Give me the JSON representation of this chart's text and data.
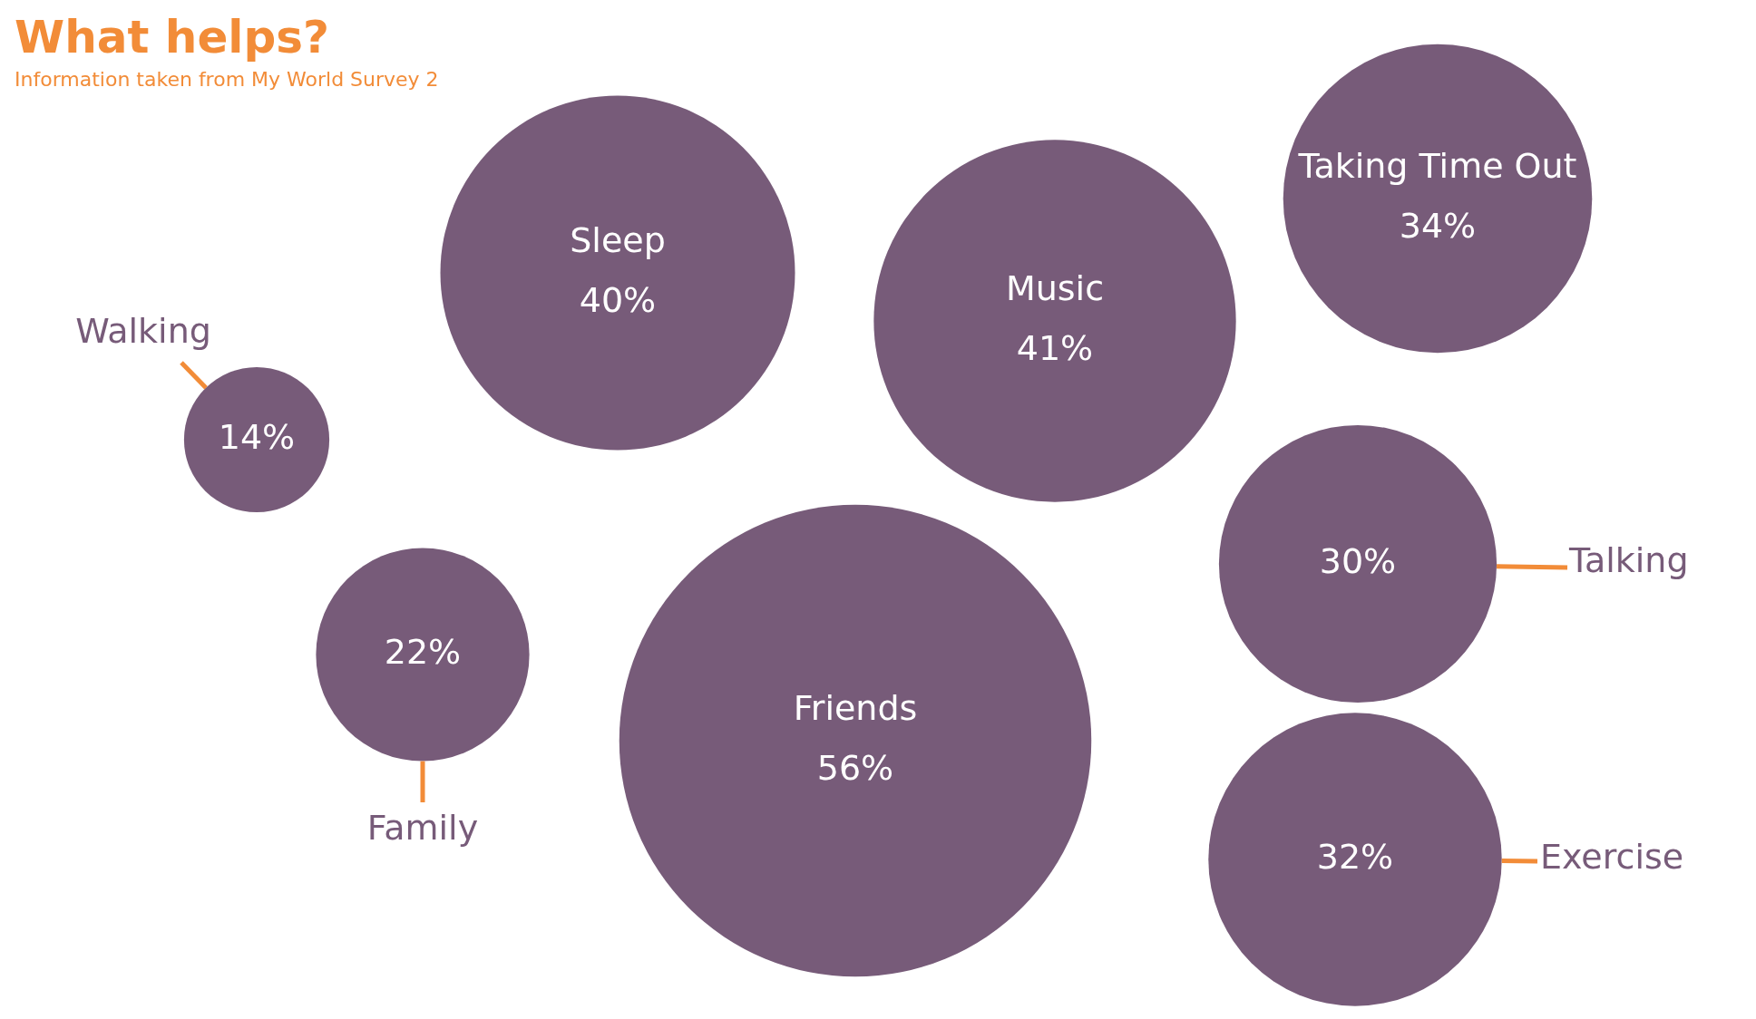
{
  "chart_data": {
    "type": "other",
    "title": "What helps?",
    "subtitle": "Information taken from My World Survey 2",
    "categories": [
      "Walking",
      "Sleep",
      "Music",
      "Taking Time Out",
      "Talking",
      "Family",
      "Friends",
      "Exercise"
    ],
    "values": [
      14,
      40,
      41,
      34,
      30,
      22,
      56,
      32
    ],
    "value_labels": [
      "14%",
      "40%",
      "41%",
      "34%",
      "30%",
      "22%",
      "56%",
      "32%"
    ],
    "color": "#775b79"
  }
}
